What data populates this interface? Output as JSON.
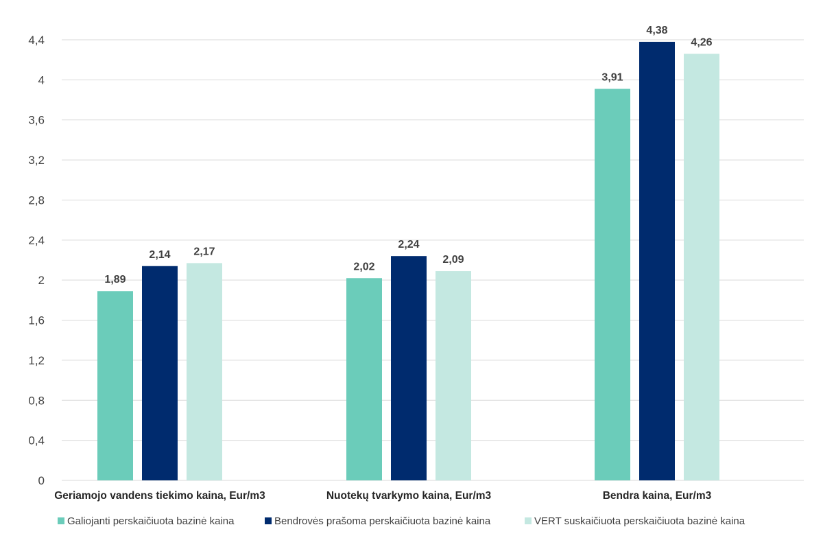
{
  "chart_data": {
    "type": "bar",
    "title": "",
    "xlabel": "",
    "ylabel": "",
    "categories": [
      "Geriamojo vandens tiekimo kaina, Eur/m3",
      "Nuotekų tvarkymo kaina, Eur/m3",
      "Bendra kaina, Eur/m3"
    ],
    "series": [
      {
        "name": "Galiojanti perskaičiuota bazinė kaina",
        "color": "#6bccba",
        "values": [
          1.89,
          2.02,
          3.91
        ],
        "labels": [
          "1,89",
          "2,02",
          "3,91"
        ]
      },
      {
        "name": "Bendrovės prašoma perskaičiuota bazinė kaina",
        "color": "#002b6e",
        "values": [
          2.14,
          2.24,
          4.38
        ],
        "labels": [
          "2,14",
          "2,24",
          "4,38"
        ]
      },
      {
        "name": "VERT suskaičiuota perskaičiuota bazinė kaina",
        "color": "#c4e8e1",
        "values": [
          2.17,
          2.09,
          4.26
        ],
        "labels": [
          "2,17",
          "2,09",
          "4,26"
        ]
      }
    ],
    "ylim": [
      0,
      4.4
    ],
    "yticks": [
      0,
      0.4,
      0.8,
      1.2,
      1.6,
      2,
      2.4,
      2.8,
      3.2,
      3.6,
      4,
      4.4
    ],
    "ytick_labels": [
      "0",
      "0,4",
      "0,8",
      "1,2",
      "1,6",
      "2",
      "2,4",
      "2,8",
      "3,2",
      "3,6",
      "4",
      "4,4"
    ],
    "grid": true,
    "legend_position": "bottom"
  }
}
